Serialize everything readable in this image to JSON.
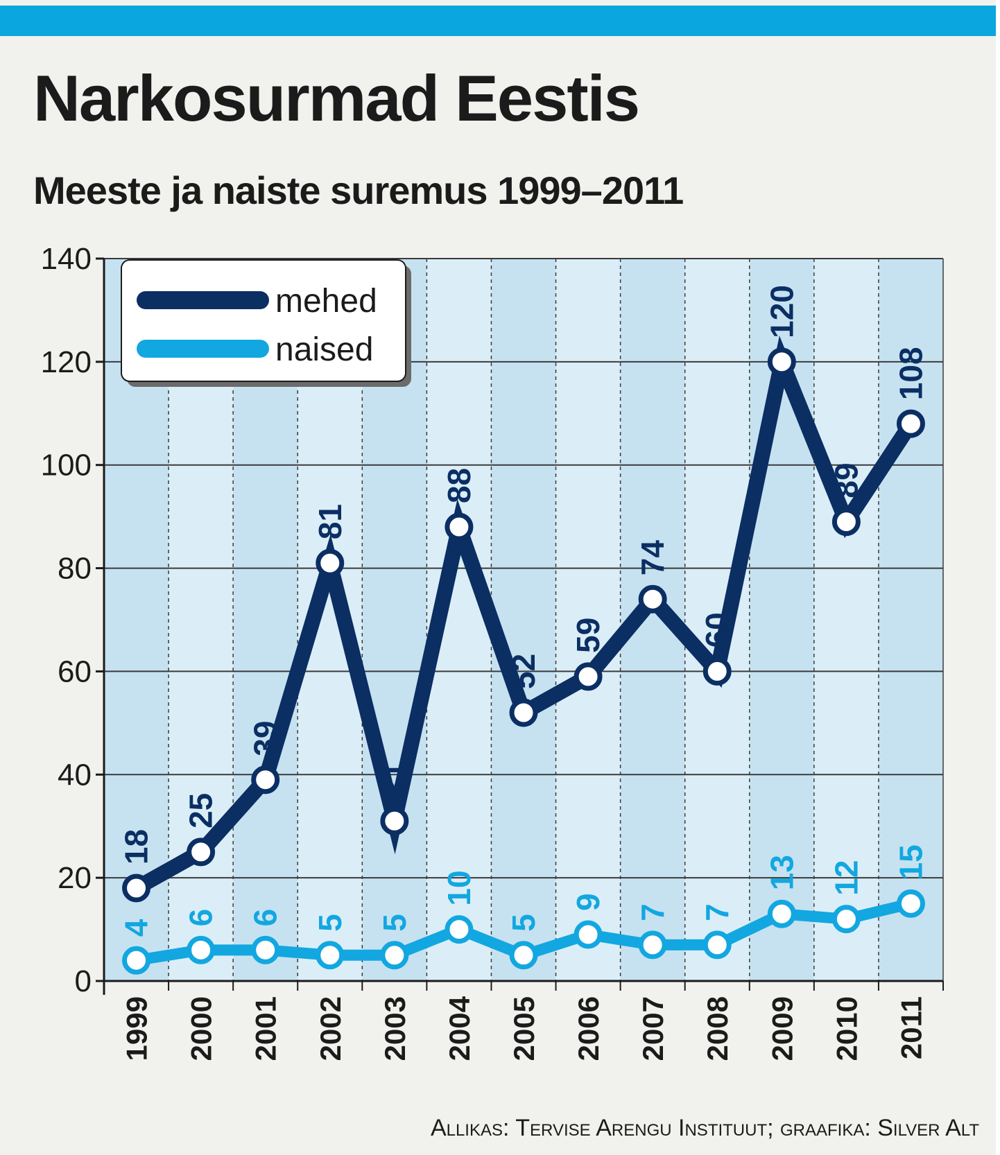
{
  "header": {
    "title": "Narkosurmad Eestis",
    "subtitle": "Meeste ja naiste suremus 1999–2011"
  },
  "footer": {
    "source": "Allikas: Tervise Arengu Instituut; graafika: Silver Alt"
  },
  "colors": {
    "accent_bar": "#0aa6df",
    "mehed": "#0b2e63",
    "naised": "#12a7e0",
    "band_dark": "#c6e2f1",
    "band_light": "#dbeef7"
  },
  "chart_data": {
    "type": "line",
    "title": "Narkosurmad Eestis",
    "subtitle": "Meeste ja naiste suremus 1999–2011",
    "categories": [
      "1999",
      "2000",
      "2001",
      "2002",
      "2003",
      "2004",
      "2005",
      "2006",
      "2007",
      "2008",
      "2009",
      "2010",
      "2011"
    ],
    "series": [
      {
        "name": "mehed",
        "values": [
          18,
          25,
          39,
          81,
          31,
          88,
          52,
          59,
          74,
          60,
          120,
          89,
          108
        ]
      },
      {
        "name": "naised",
        "values": [
          4,
          6,
          6,
          5,
          5,
          10,
          5,
          9,
          7,
          7,
          13,
          12,
          15
        ]
      }
    ],
    "ylim": [
      0,
      140
    ],
    "yticks": [
      0,
      20,
      40,
      60,
      80,
      100,
      120,
      140
    ],
    "grid": true,
    "legend": "top-left",
    "xlabel": "",
    "ylabel": ""
  }
}
